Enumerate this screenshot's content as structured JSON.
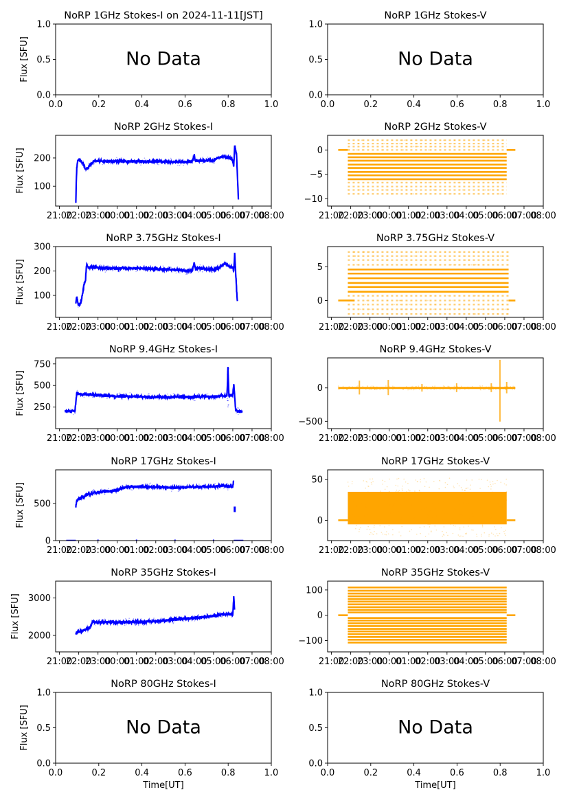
{
  "figure": {
    "xlabel": "Time[UT]",
    "ylabel": "Flux [SFU]",
    "no_data_text": "No Data",
    "colors": {
      "stokes_i": "#0000ff",
      "stokes_v": "#ffa500",
      "axis": "#000000"
    },
    "time_ticks": [
      "21:00",
      "22:00",
      "23:00",
      "00:00",
      "01:00",
      "02:00",
      "03:00",
      "04:00",
      "05:00",
      "06:00",
      "07:00",
      "08:00"
    ],
    "unit_ticks_x": [
      "0.0",
      "0.2",
      "0.4",
      "0.6",
      "0.8",
      "1.0"
    ],
    "unit_ticks_y": [
      "0.0",
      "0.5",
      "1.0"
    ]
  },
  "chart_data": [
    {
      "id": "1ghz-i",
      "type": "scatter",
      "title": "NoRP 1GHz Stokes-I on 2024-11-11[JST]",
      "no_data": true,
      "ylim": [
        0,
        1
      ],
      "xlim": [
        0,
        1
      ],
      "yticks": [
        0,
        0.5,
        1.0
      ],
      "ytick_labels": [
        "0.0",
        "0.5",
        "1.0"
      ],
      "row": 0,
      "col": 0
    },
    {
      "id": "1ghz-v",
      "type": "scatter",
      "title": "NoRP 1GHz Stokes-V",
      "no_data": true,
      "ylim": [
        0,
        1
      ],
      "xlim": [
        0,
        1
      ],
      "yticks": [
        0,
        0.5,
        1.0
      ],
      "ytick_labels": [
        "0.0",
        "0.5",
        "1.0"
      ],
      "row": 0,
      "col": 1
    },
    {
      "id": "2ghz-i",
      "type": "line",
      "title": "NoRP 2GHz Stokes-I",
      "ylim": [
        30,
        280
      ],
      "yticks": [
        100,
        200
      ],
      "ytick_labels": [
        "100",
        "200"
      ],
      "row": 1,
      "col": 0,
      "series": [
        {
          "name": "Stokes-I",
          "x_hours": [
            21.85,
            21.87,
            21.9,
            21.95,
            22.0,
            22.1,
            22.2,
            22.35,
            22.45,
            22.6,
            22.8,
            23.0,
            24.0,
            25.0,
            26.0,
            27.0,
            27.9,
            28.0,
            28.05,
            28.1,
            28.5,
            29.0,
            29.2,
            29.5,
            29.9,
            30.0,
            30.05,
            30.1,
            30.2,
            30.25,
            30.3
          ],
          "y": [
            40,
            110,
            165,
            190,
            195,
            188,
            183,
            160,
            165,
            175,
            188,
            190,
            188,
            188,
            188,
            186,
            186,
            210,
            188,
            190,
            190,
            192,
            200,
            205,
            200,
            190,
            170,
            245,
            210,
            120,
            40
          ]
        }
      ]
    },
    {
      "id": "2ghz-v",
      "type": "scatter",
      "title": "NoRP 2GHz Stokes-V",
      "ylim": [
        -11.5,
        3
      ],
      "yticks": [
        -10,
        -5,
        0
      ],
      "ytick_labels": [
        "−10",
        "−5",
        "0"
      ],
      "row": 1,
      "col": 1,
      "series": [
        {
          "name": "Stokes-V",
          "levels": [
            2,
            1.3,
            0.7,
            0,
            -0.8,
            -1.5,
            -2.2,
            -3,
            -3.7,
            -4.5,
            -5.2,
            -6,
            -6.7,
            -7.5,
            -8.2,
            -9
          ],
          "core_levels": [
            -0.8,
            -1.5,
            -2.2,
            -3,
            -3.7,
            -4.5,
            -5.2,
            -6
          ],
          "active_range_hours": [
            21.85,
            30.1
          ],
          "baseline_ranges_hours": [
            [
              21.35,
              21.85
            ],
            [
              30.1,
              30.55
            ]
          ]
        }
      ]
    },
    {
      "id": "3.75ghz-i",
      "type": "line",
      "title": "NoRP 3.75GHz Stokes-I",
      "ylim": [
        10,
        300
      ],
      "yticks": [
        100,
        200,
        300
      ],
      "ytick_labels": [
        "100",
        "200",
        "300"
      ],
      "row": 2,
      "col": 0,
      "series": [
        {
          "name": "Stokes-I",
          "x_hours": [
            21.85,
            21.9,
            21.95,
            22.0,
            22.1,
            22.2,
            22.3,
            22.35,
            22.4,
            22.5,
            23.0,
            23.5,
            24.0,
            25.0,
            26.0,
            27.0,
            27.9,
            28.0,
            28.05,
            28.5,
            29.0,
            29.3,
            29.6,
            29.8,
            30.0,
            30.05,
            30.1,
            30.2,
            30.25
          ],
          "y": [
            65,
            95,
            70,
            60,
            65,
            110,
            155,
            160,
            225,
            215,
            215,
            210,
            210,
            212,
            208,
            205,
            200,
            235,
            210,
            210,
            205,
            215,
            230,
            220,
            215,
            200,
            270,
            120,
            60
          ]
        }
      ]
    },
    {
      "id": "3.75ghz-v",
      "type": "scatter",
      "title": "NoRP 3.75GHz Stokes-V",
      "ylim": [
        -2.5,
        8
      ],
      "yticks": [
        0,
        5
      ],
      "ytick_labels": [
        "0",
        "5"
      ],
      "row": 2,
      "col": 1,
      "series": [
        {
          "name": "Stokes-V",
          "levels": [
            -2,
            -1.3,
            -0.6,
            0,
            0.7,
            1.3,
            2,
            2.6,
            3.3,
            4,
            4.6,
            5.3,
            6,
            6.6,
            7.2
          ],
          "core_levels": [
            1.3,
            2,
            2.6,
            3.3,
            4,
            4.6
          ],
          "active_range_hours": [
            21.85,
            30.2
          ],
          "baseline_ranges_hours": [
            [
              21.35,
              22.2
            ],
            [
              30.2,
              30.55
            ]
          ]
        }
      ]
    },
    {
      "id": "9.4ghz-i",
      "type": "line",
      "title": "NoRP 9.4GHz Stokes-I",
      "ylim": [
        0,
        820
      ],
      "yticks": [
        250,
        500,
        750
      ],
      "ytick_labels": [
        "250",
        "500",
        "750"
      ],
      "row": 3,
      "col": 0,
      "series": [
        {
          "name": "Stokes-I",
          "x_hours": [
            21.3,
            21.8,
            21.85,
            21.9,
            22.0,
            22.5,
            23.0,
            24.0,
            25.0,
            26.0,
            27.0,
            28.0,
            29.0,
            29.5,
            29.7,
            29.75,
            29.8,
            30.0,
            30.05,
            30.1,
            30.15,
            30.5
          ],
          "y": [
            200,
            200,
            300,
            420,
            400,
            395,
            385,
            375,
            370,
            365,
            365,
            370,
            372,
            380,
            380,
            700,
            380,
            390,
            520,
            380,
            200,
            200
          ]
        }
      ]
    },
    {
      "id": "9.4ghz-v",
      "type": "scatter",
      "title": "NoRP 9.4GHz Stokes-V",
      "ylim": [
        -610,
        450
      ],
      "yticks": [
        -500,
        0
      ],
      "ytick_labels": [
        "−500",
        "0"
      ],
      "row": 3,
      "col": 1,
      "series": [
        {
          "name": "Stokes-V",
          "baseline": 0,
          "spikes": [
            {
              "x": 22.45,
              "amp": 110
            },
            {
              "x": 23.95,
              "amp": 120
            },
            {
              "x": 25.7,
              "amp": 60
            },
            {
              "x": 27.5,
              "amp": 70
            },
            {
              "x": 29.3,
              "amp": 70
            },
            {
              "x": 29.75,
              "amp": 420
            },
            {
              "x": 30.1,
              "amp": 90
            }
          ],
          "range_hours": [
            21.35,
            30.55
          ]
        }
      ]
    },
    {
      "id": "17ghz-i",
      "type": "line",
      "title": "NoRP 17GHz Stokes-I",
      "ylim": [
        0,
        950
      ],
      "yticks": [
        0,
        500
      ],
      "ytick_labels": [
        "0",
        "500"
      ],
      "row": 4,
      "col": 0,
      "series": [
        {
          "name": "Stokes-I",
          "x_hours": [
            21.85,
            21.9,
            22.0,
            22.5,
            23.0,
            23.5,
            24.0,
            24.5,
            25.0,
            26.0,
            27.0,
            28.0,
            29.0,
            29.5,
            30.0,
            30.05
          ],
          "y": [
            450,
            540,
            560,
            620,
            650,
            660,
            680,
            720,
            725,
            720,
            710,
            720,
            725,
            740,
            720,
            830
          ]
        }
      ]
    },
    {
      "id": "17ghz-v",
      "type": "scatter",
      "title": "NoRP 17GHz Stokes-V",
      "ylim": [
        -25,
        62
      ],
      "yticks": [
        0,
        50
      ],
      "ytick_labels": [
        "0",
        "50"
      ],
      "row": 4,
      "col": 1,
      "series": [
        {
          "name": "Stokes-V",
          "band": [
            -5,
            35
          ],
          "scatter_range": [
            -20,
            52
          ],
          "active_range_hours": [
            21.85,
            30.1
          ],
          "baseline_ranges_hours": [
            [
              21.35,
              21.85
            ],
            [
              30.1,
              30.55
            ]
          ]
        }
      ]
    },
    {
      "id": "35ghz-i",
      "type": "line",
      "title": "NoRP 35GHz Stokes-I",
      "ylim": [
        1560,
        3450
      ],
      "yticks": [
        2000,
        3000
      ],
      "ytick_labels": [
        "2000",
        "3000"
      ],
      "row": 5,
      "col": 0,
      "series": [
        {
          "name": "Stokes-I",
          "x_hours": [
            21.85,
            22.0,
            22.3,
            22.6,
            22.7,
            23.0,
            24.0,
            25.0,
            26.0,
            27.0,
            28.0,
            29.0,
            29.5,
            30.0,
            30.05,
            30.1
          ],
          "y": [
            2050,
            2100,
            2150,
            2200,
            2350,
            2350,
            2350,
            2360,
            2380,
            2420,
            2470,
            2520,
            2560,
            2560,
            3050,
            2600
          ]
        }
      ]
    },
    {
      "id": "35ghz-v",
      "type": "scatter",
      "title": "NoRP 35GHz Stokes-V",
      "ylim": [
        -145,
        135
      ],
      "yticks": [
        -100,
        0,
        100
      ],
      "ytick_labels": [
        "−100",
        "0",
        "100"
      ],
      "row": 5,
      "col": 1,
      "series": [
        {
          "name": "Stokes-V",
          "levels": [
            110,
            97,
            86,
            75,
            64,
            54,
            43,
            32,
            21,
            11,
            -11,
            -21,
            -32,
            -43,
            -54,
            -64,
            -75,
            -86,
            -97,
            -108
          ],
          "active_range_hours": [
            21.85,
            30.1
          ],
          "baseline_ranges_hours": [
            [
              21.35,
              21.85
            ],
            [
              30.1,
              30.55
            ]
          ]
        }
      ]
    },
    {
      "id": "80ghz-i",
      "type": "scatter",
      "title": "NoRP 80GHz Stokes-I",
      "no_data": true,
      "ylim": [
        0,
        1
      ],
      "xlim": [
        0,
        1
      ],
      "yticks": [
        0,
        0.5,
        1.0
      ],
      "ytick_labels": [
        "0.0",
        "0.5",
        "1.0"
      ],
      "row": 6,
      "col": 0
    },
    {
      "id": "80ghz-v",
      "type": "scatter",
      "title": "NoRP 80GHz Stokes-V",
      "no_data": true,
      "ylim": [
        0,
        1
      ],
      "xlim": [
        0,
        1
      ],
      "yticks": [
        0,
        0.5,
        1.0
      ],
      "ytick_labels": [
        "0.0",
        "0.5",
        "1.0"
      ],
      "row": 6,
      "col": 1
    }
  ]
}
